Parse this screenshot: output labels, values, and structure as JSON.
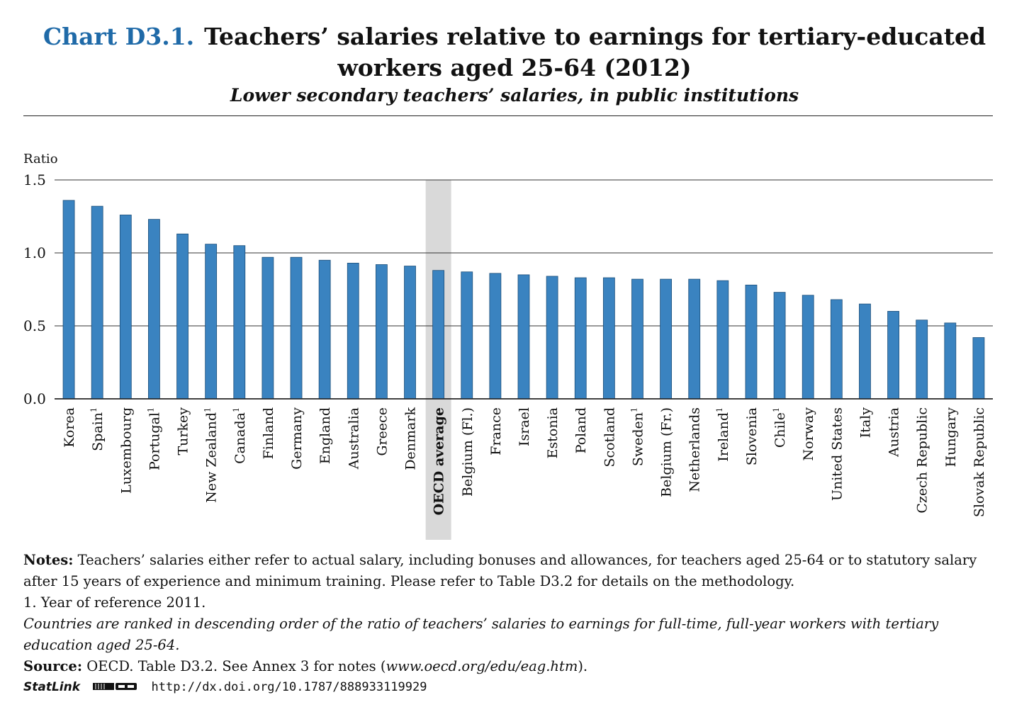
{
  "header": {
    "chart_label": "Chart D3.1.",
    "title_line1": "Teachers’ salaries relative to earnings for tertiary-educated",
    "title_line2": "workers aged 25-64 (2012)",
    "subtitle": "Lower secondary teachers’ salaries, in public institutions"
  },
  "chart_data": {
    "type": "bar",
    "ylabel": "Ratio",
    "ylim": [
      0,
      1.5
    ],
    "yticks": [
      "0.0",
      "0.5",
      "1.0",
      "1.5"
    ],
    "grid": true,
    "bar_color": "#3a83c0",
    "highlight_color": "#d9d9d9",
    "highlight_category": "OECD average",
    "categories": [
      {
        "name": "Korea",
        "sup": ""
      },
      {
        "name": "Spain",
        "sup": "1"
      },
      {
        "name": "Luxembourg",
        "sup": ""
      },
      {
        "name": "Portugal",
        "sup": "1"
      },
      {
        "name": "Turkey",
        "sup": ""
      },
      {
        "name": "New Zealand",
        "sup": "1"
      },
      {
        "name": "Canada",
        "sup": "1"
      },
      {
        "name": "Finland",
        "sup": ""
      },
      {
        "name": "Germany",
        "sup": ""
      },
      {
        "name": "England",
        "sup": ""
      },
      {
        "name": "Australia",
        "sup": ""
      },
      {
        "name": "Greece",
        "sup": ""
      },
      {
        "name": "Denmark",
        "sup": ""
      },
      {
        "name": "OECD average",
        "sup": ""
      },
      {
        "name": "Belgium (Fl.)",
        "sup": ""
      },
      {
        "name": "France",
        "sup": ""
      },
      {
        "name": "Israel",
        "sup": ""
      },
      {
        "name": "Estonia",
        "sup": ""
      },
      {
        "name": "Poland",
        "sup": ""
      },
      {
        "name": "Scotland",
        "sup": ""
      },
      {
        "name": "Sweden",
        "sup": "1"
      },
      {
        "name": "Belgium (Fr.)",
        "sup": ""
      },
      {
        "name": "Netherlands",
        "sup": ""
      },
      {
        "name": "Ireland",
        "sup": "1"
      },
      {
        "name": "Slovenia",
        "sup": ""
      },
      {
        "name": "Chile",
        "sup": "1"
      },
      {
        "name": "Norway",
        "sup": ""
      },
      {
        "name": "United States",
        "sup": ""
      },
      {
        "name": "Italy",
        "sup": ""
      },
      {
        "name": "Austria",
        "sup": ""
      },
      {
        "name": "Czech Republic",
        "sup": ""
      },
      {
        "name": "Hungary",
        "sup": ""
      },
      {
        "name": "Slovak Republic",
        "sup": ""
      }
    ],
    "values": [
      1.36,
      1.32,
      1.26,
      1.23,
      1.13,
      1.06,
      1.05,
      0.97,
      0.97,
      0.95,
      0.93,
      0.92,
      0.91,
      0.88,
      0.87,
      0.86,
      0.85,
      0.84,
      0.83,
      0.83,
      0.82,
      0.82,
      0.82,
      0.81,
      0.78,
      0.73,
      0.71,
      0.68,
      0.65,
      0.6,
      0.54,
      0.52,
      0.42
    ]
  },
  "notes": {
    "notes_label": "Notes:",
    "notes_text": " Teachers’ salaries either refer to actual salary, including bonuses and allowances, for teachers aged 25-64 or to statutory salary after 15 years of experience and minimum training. Please refer to Table D3.2 for details on the methodology.",
    "footnote1": "1. Year of reference 2011.",
    "ranking": "Countries are ranked in descending order of the ratio of teachers’ salaries to earnings for full-time, full-year workers with tertiary education aged 25-64.",
    "source_label": "Source:",
    "source_text_pre": " OECD. Table D3.2. See Annex 3 for notes (",
    "source_url": "www.oecd.org/edu/eag.htm",
    "source_text_post": ").",
    "statlink_label": "StatLink",
    "statlink_url": "http://dx.doi.org/10.1787/888933119929"
  }
}
